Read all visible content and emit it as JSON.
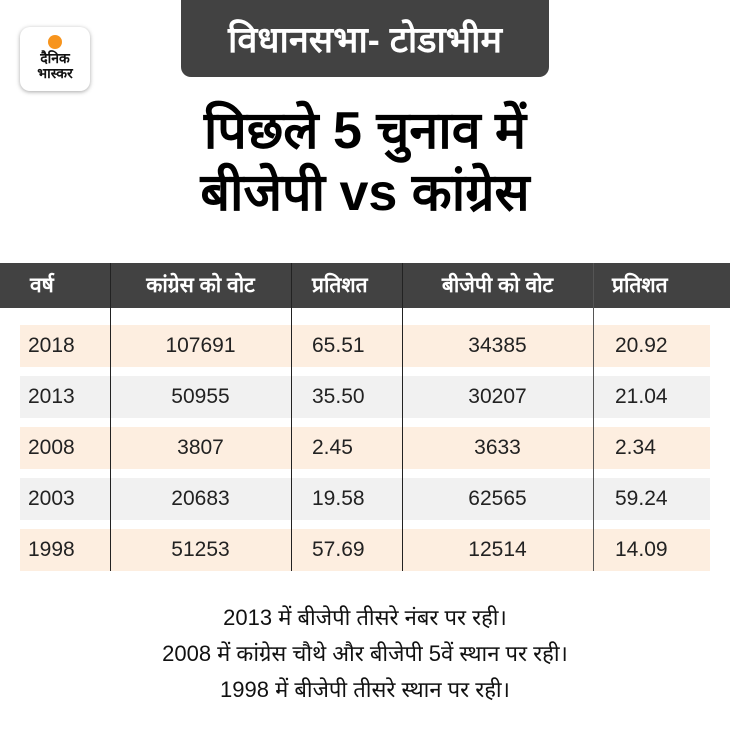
{
  "brand": {
    "logo_text": [
      "दैनिक",
      "भास्कर"
    ],
    "accent": "#f7941d"
  },
  "header": {
    "constituency": "विधानसभा- टोडाभीम"
  },
  "headline": [
    "पिछले 5 चुनाव में",
    "बीजेपी vs कांग्रेस"
  ],
  "table": {
    "columns": [
      "वर्ष",
      "कांग्रेस को वोट",
      "प्रतिशत",
      "बीजेपी को वोट",
      "प्रतिशत"
    ],
    "rows": [
      [
        "2018",
        "107691",
        "65.51",
        "34385",
        "20.92"
      ],
      [
        "2013",
        "50955",
        "35.50",
        "30207",
        "21.04"
      ],
      [
        "2008",
        "3807",
        "2.45",
        "3633",
        "2.34"
      ],
      [
        "2003",
        "20683",
        "19.58",
        "62565",
        "59.24"
      ],
      [
        "1998",
        "51253",
        "57.69",
        "12514",
        "14.09"
      ]
    ],
    "row_colors": [
      "#fdeee0",
      "#f1f1f1"
    ]
  },
  "notes": [
    "2013 में बीजेपी तीसरे नंबर पर रही।",
    "2008 में कांग्रेस चौथे और बीजेपी 5वें स्थान पर रही।",
    "1998 में बीजेपी तीसरे स्थान पर रही।"
  ]
}
